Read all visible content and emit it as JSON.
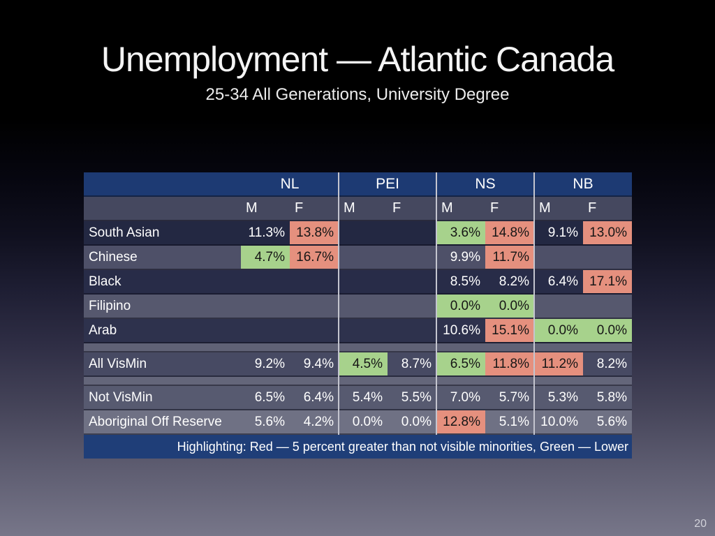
{
  "slide": {
    "title": "Unemployment — Atlantic Canada",
    "subtitle": "25-34 All Generations, University Degree",
    "page_number": "20"
  },
  "table": {
    "province_groups": [
      "NL",
      "PEI",
      "NS",
      "NB"
    ],
    "sex_headers": [
      "M",
      "F",
      "M",
      "F",
      "M",
      "F",
      "M",
      "F"
    ],
    "footer_note": "Highlighting: Red — 5 percent greater than not visible minorities, Green — Lower",
    "rows": [
      {
        "type": "data",
        "label": "South Asian",
        "cells": [
          {
            "v": "11.3%"
          },
          {
            "v": "13.8%",
            "h": "red"
          },
          null,
          null,
          {
            "v": "3.6%",
            "h": "green"
          },
          {
            "v": "14.8%",
            "h": "red"
          },
          {
            "v": "9.1%"
          },
          {
            "v": "13.0%",
            "h": "red"
          }
        ]
      },
      {
        "type": "data",
        "label": "Chinese",
        "cells": [
          {
            "v": "4.7%",
            "h": "green"
          },
          {
            "v": "16.7%",
            "h": "red"
          },
          null,
          null,
          {
            "v": "9.9%"
          },
          {
            "v": "11.7%",
            "h": "red"
          },
          null,
          null
        ]
      },
      {
        "type": "data",
        "label": "Black",
        "cells": [
          null,
          null,
          null,
          null,
          {
            "v": "8.5%"
          },
          {
            "v": "8.2%"
          },
          {
            "v": "6.4%"
          },
          {
            "v": "17.1%",
            "h": "red"
          }
        ]
      },
      {
        "type": "data",
        "label": "Filipino",
        "cells": [
          null,
          null,
          null,
          null,
          {
            "v": "0.0%",
            "h": "green"
          },
          {
            "v": "0.0%",
            "h": "green"
          },
          null,
          null
        ]
      },
      {
        "type": "data",
        "label": "Arab",
        "cells": [
          null,
          null,
          null,
          null,
          {
            "v": "10.6%"
          },
          {
            "v": "15.1%",
            "h": "red"
          },
          {
            "v": "0.0%",
            "h": "green"
          },
          {
            "v": "0.0%",
            "h": "green"
          }
        ]
      },
      {
        "type": "spacer"
      },
      {
        "type": "data",
        "label": "All VisMin",
        "cells": [
          {
            "v": "9.2%"
          },
          {
            "v": "9.4%"
          },
          {
            "v": "4.5%",
            "h": "green"
          },
          {
            "v": "8.7%"
          },
          {
            "v": "6.5%",
            "h": "green"
          },
          {
            "v": "11.8%",
            "h": "red"
          },
          {
            "v": "11.2%",
            "h": "red"
          },
          {
            "v": "8.2%"
          }
        ]
      },
      {
        "type": "spacer"
      },
      {
        "type": "data",
        "label": "Not VisMin",
        "cells": [
          {
            "v": "6.5%"
          },
          {
            "v": "6.4%"
          },
          {
            "v": "5.4%"
          },
          {
            "v": "5.5%"
          },
          {
            "v": "7.0%"
          },
          {
            "v": "5.7%"
          },
          {
            "v": "5.3%"
          },
          {
            "v": "5.8%"
          }
        ]
      },
      {
        "type": "data",
        "label": "Aboriginal Off Reserve",
        "cells": [
          {
            "v": "5.6%"
          },
          {
            "v": "4.2%"
          },
          {
            "v": "0.0%"
          },
          {
            "v": "0.0%"
          },
          {
            "v": "12.8%",
            "h": "red"
          },
          {
            "v": "5.1%"
          },
          {
            "v": "10.0%"
          },
          {
            "v": "5.6%"
          }
        ]
      }
    ],
    "colors": {
      "header_blue": "#1d3a73",
      "footer_blue": "#1f3e78",
      "subheader_gray": "#45485f",
      "red_highlight": "#e5907e",
      "green_highlight": "#a7d28c",
      "separator": "#c4c5cf",
      "row_backgrounds": [
        "#232842",
        "#4e5068",
        "#282c48",
        "#56586e",
        "#2e324d",
        "#606276",
        "#474a63",
        "#64667a",
        "#575a70",
        "#6f7184"
      ]
    }
  }
}
